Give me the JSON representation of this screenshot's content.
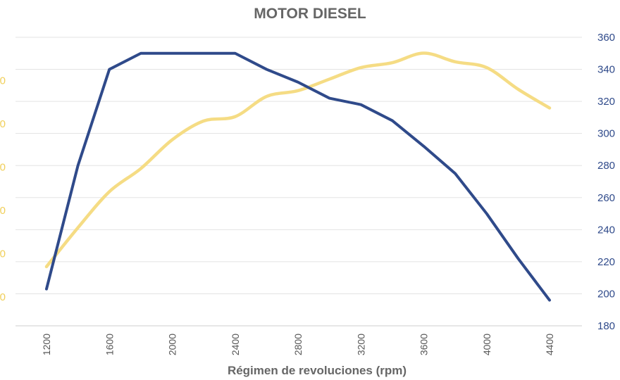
{
  "chart_data": {
    "type": "line",
    "title": "MOTOR DIESEL",
    "xlabel": "Régimen de revoluciones (rpm)",
    "x_ticks": [
      1200,
      1600,
      2000,
      2400,
      2800,
      3200,
      3600,
      4000,
      4400
    ],
    "xlim": [
      1200,
      4400
    ],
    "y_right": {
      "ylim": [
        180,
        360
      ],
      "ticks": [
        180,
        200,
        220,
        240,
        260,
        280,
        300,
        320,
        340,
        360
      ]
    },
    "y_left": {
      "tick_labels": [
        "0",
        "0",
        "0",
        "0",
        "0",
        "0"
      ],
      "tick_positions": [
        0.1,
        0.25,
        0.4,
        0.55,
        0.7,
        0.85
      ],
      "color": "#f0cf5a"
    },
    "grid": true,
    "series": [
      {
        "axis": "right",
        "color": "#2f4a8a",
        "x": [
          1200,
          1400,
          1600,
          1800,
          2000,
          2200,
          2400,
          2600,
          2800,
          3000,
          3200,
          3400,
          3600,
          3800,
          4000,
          4200,
          4400
        ],
        "y": [
          203,
          280,
          340,
          350,
          350,
          350,
          350,
          340,
          332,
          322,
          318,
          308,
          292,
          275,
          250,
          222,
          196
        ]
      },
      {
        "axis": "left",
        "color": "#f5dc84",
        "smooth": true,
        "x": [
          1200,
          1400,
          1600,
          1800,
          2000,
          2200,
          2400,
          2600,
          2800,
          3000,
          3200,
          3400,
          3600,
          3800,
          4000,
          4200,
          4400
        ],
        "y_frac": [
          0.205,
          0.34,
          0.465,
          0.545,
          0.645,
          0.71,
          0.725,
          0.795,
          0.815,
          0.855,
          0.895,
          0.912,
          0.945,
          0.915,
          0.895,
          0.82,
          0.755
        ]
      }
    ]
  }
}
